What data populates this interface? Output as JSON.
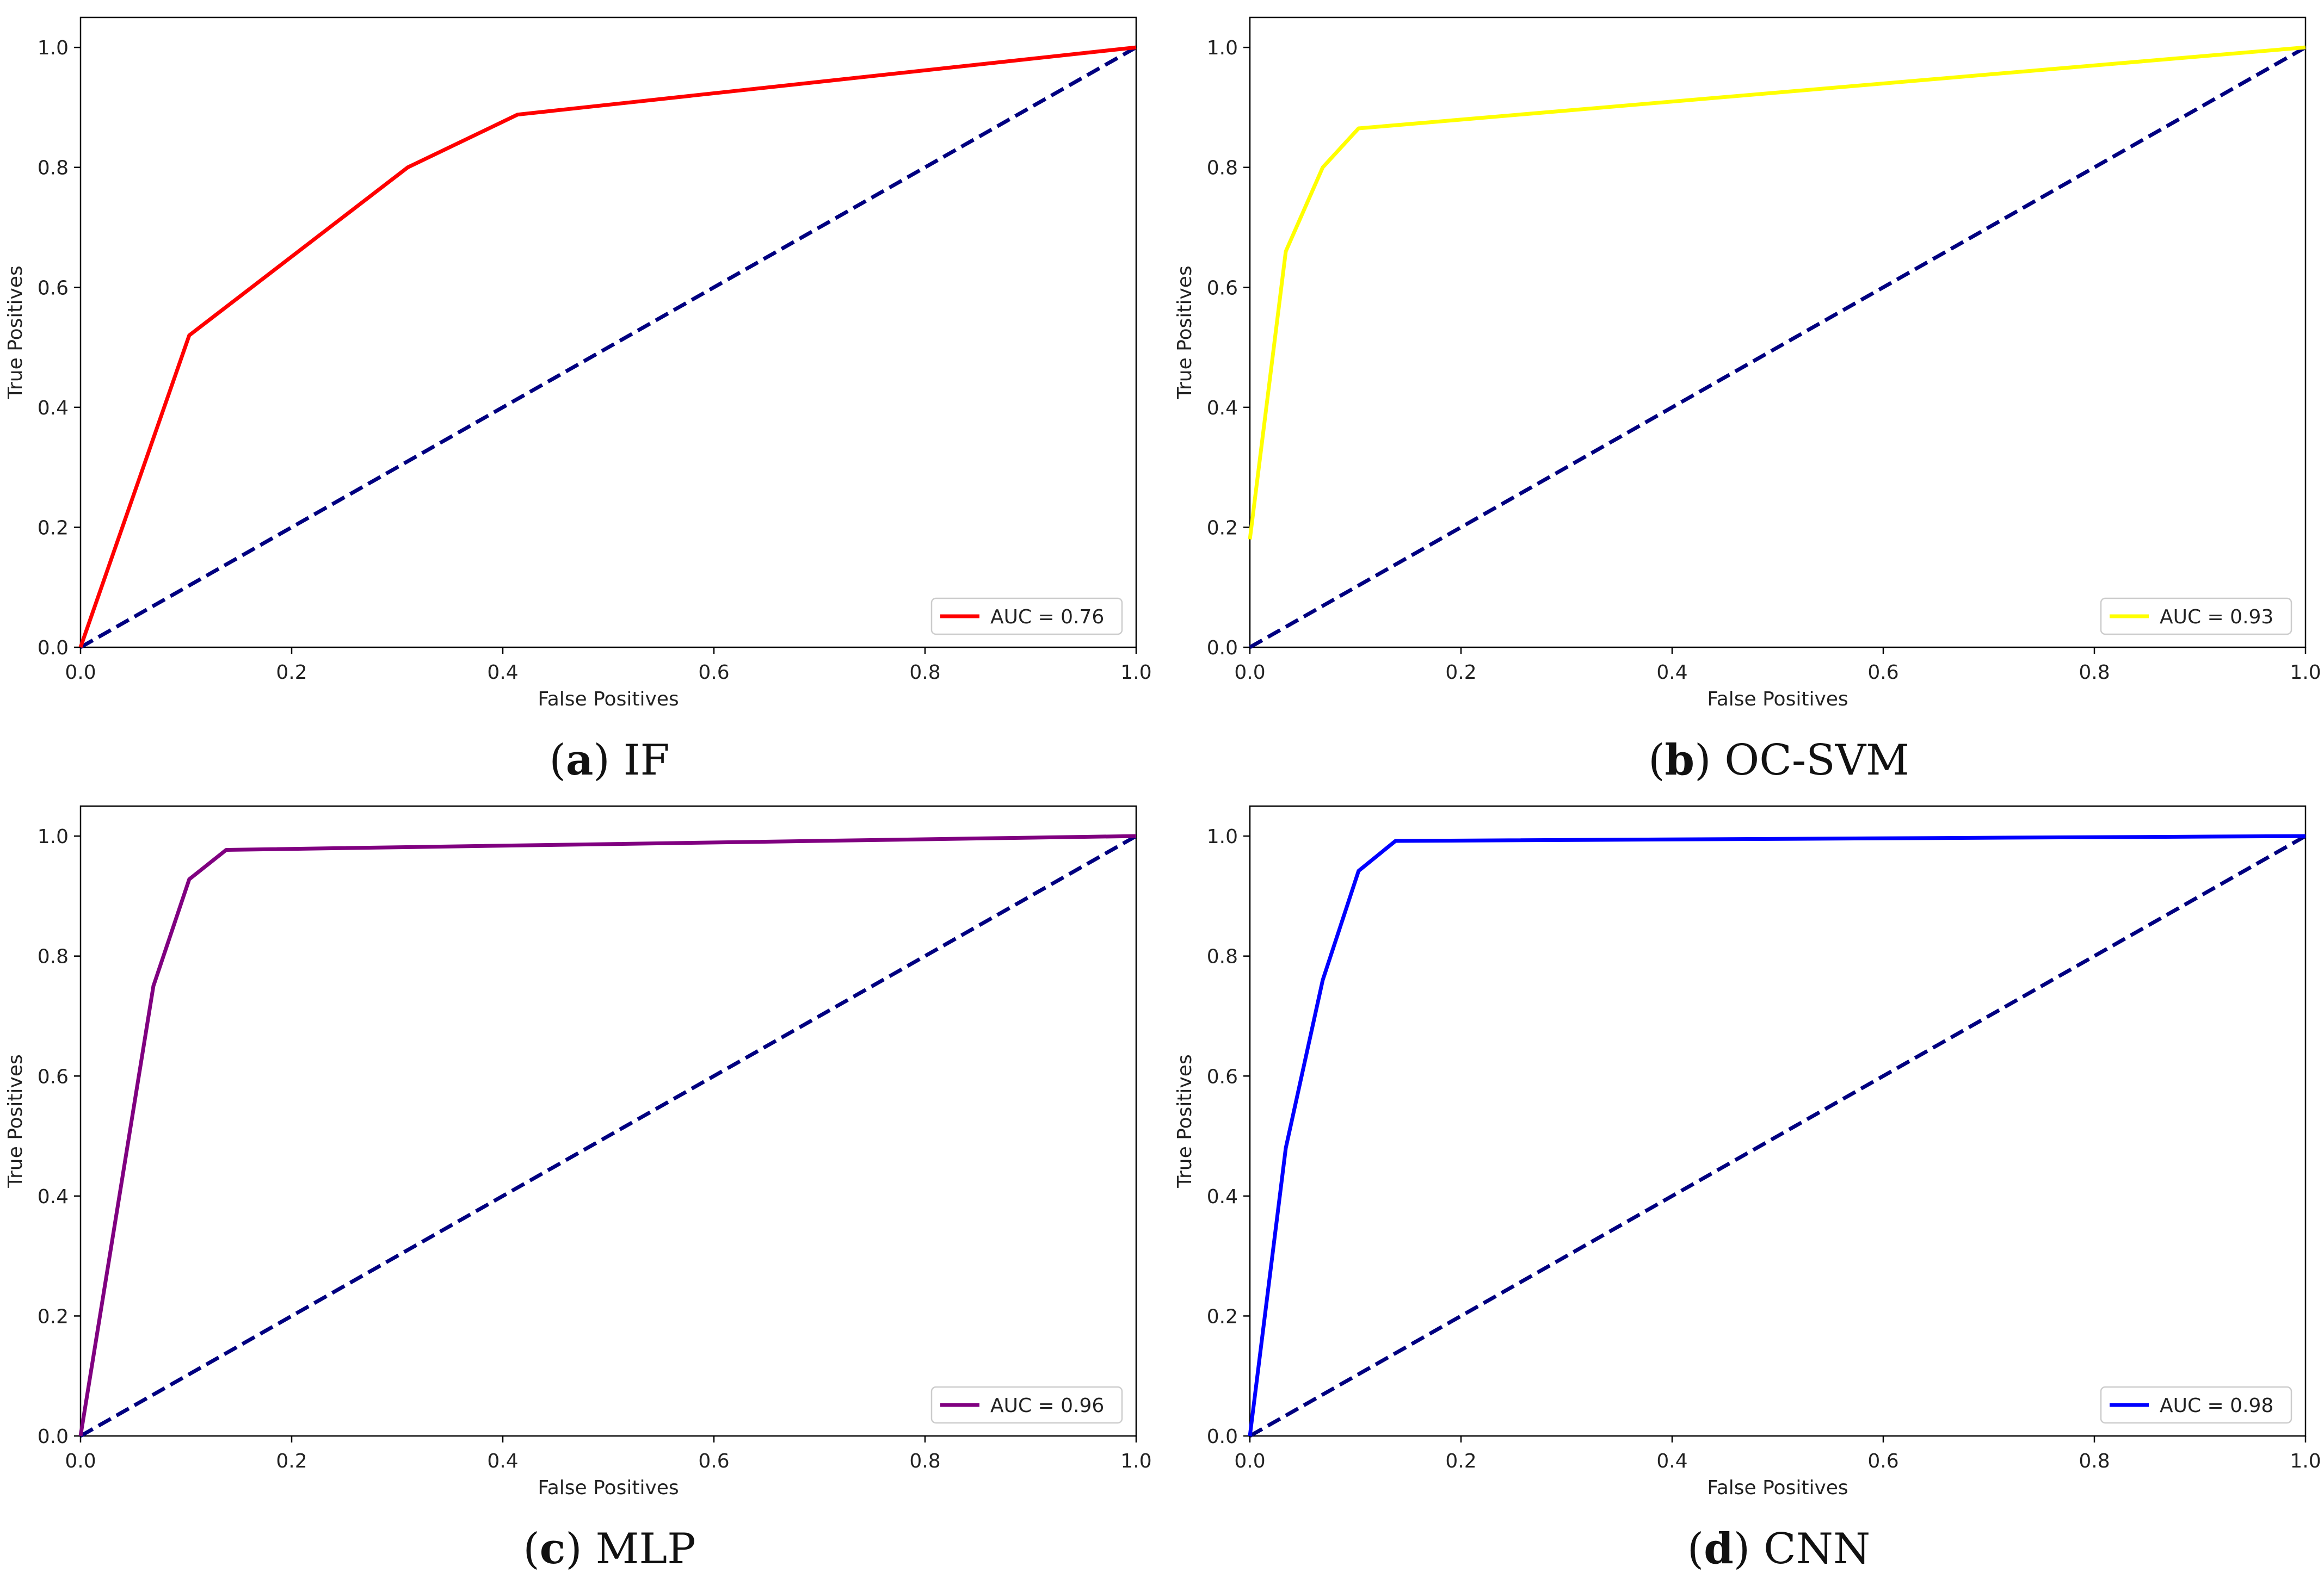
{
  "chart_data": [
    {
      "type": "line",
      "caption": {
        "letter": "a",
        "name": "IF"
      },
      "xlabel": "False Positives",
      "ylabel": "True Positives",
      "xlim": [
        0.0,
        1.0
      ],
      "ylim": [
        0.0,
        1.05
      ],
      "xticks": [
        "0.0",
        "0.2",
        "0.4",
        "0.6",
        "0.8",
        "1.0"
      ],
      "yticks": [
        "0.0",
        "0.2",
        "0.4",
        "0.6",
        "0.8",
        "1.0"
      ],
      "legend_position": "bottom-right",
      "series": [
        {
          "name": "AUC = 0.76",
          "color": "#ff0000",
          "style": "solid",
          "x": [
            0.0,
            0.103,
            0.31,
            0.414,
            1.0
          ],
          "y": [
            0.0,
            0.52,
            0.8,
            0.888,
            1.0
          ]
        },
        {
          "color": "#000080",
          "style": "dashed",
          "x": [
            0.0,
            1.0
          ],
          "y": [
            0.0,
            1.0
          ]
        }
      ]
    },
    {
      "type": "line",
      "caption": {
        "letter": "b",
        "name": "OC-SVM"
      },
      "xlabel": "False Positives",
      "ylabel": "True Positives",
      "xlim": [
        0.0,
        1.0
      ],
      "ylim": [
        0.0,
        1.05
      ],
      "xticks": [
        "0.0",
        "0.2",
        "0.4",
        "0.6",
        "0.8",
        "1.0"
      ],
      "yticks": [
        "0.0",
        "0.2",
        "0.4",
        "0.6",
        "0.8",
        "1.0"
      ],
      "legend_position": "bottom-right",
      "series": [
        {
          "name": "AUC = 0.93",
          "color": "#ffff00",
          "style": "solid",
          "x": [
            0.0,
            0.034,
            0.069,
            0.103,
            1.0
          ],
          "y": [
            0.18,
            0.66,
            0.8,
            0.865,
            1.0
          ]
        },
        {
          "color": "#000080",
          "style": "dashed",
          "x": [
            0.0,
            1.0
          ],
          "y": [
            0.0,
            1.0
          ]
        }
      ]
    },
    {
      "type": "line",
      "caption": {
        "letter": "c",
        "name": "MLP"
      },
      "xlabel": "False Positives",
      "ylabel": "True Positives",
      "xlim": [
        0.0,
        1.0
      ],
      "ylim": [
        0.0,
        1.05
      ],
      "xticks": [
        "0.0",
        "0.2",
        "0.4",
        "0.6",
        "0.8",
        "1.0"
      ],
      "yticks": [
        "0.0",
        "0.2",
        "0.4",
        "0.6",
        "0.8",
        "1.0"
      ],
      "legend_position": "bottom-right",
      "series": [
        {
          "name": "AUC = 0.96",
          "color": "#800080",
          "style": "solid",
          "x": [
            0.0,
            0.069,
            0.103,
            0.138,
            1.0
          ],
          "y": [
            0.0,
            0.75,
            0.928,
            0.977,
            1.0
          ]
        },
        {
          "color": "#000080",
          "style": "dashed",
          "x": [
            0.0,
            1.0
          ],
          "y": [
            0.0,
            1.0
          ]
        }
      ]
    },
    {
      "type": "line",
      "caption": {
        "letter": "d",
        "name": "CNN"
      },
      "xlabel": "False Positives",
      "ylabel": "True Positives",
      "xlim": [
        0.0,
        1.0
      ],
      "ylim": [
        0.0,
        1.05
      ],
      "xticks": [
        "0.0",
        "0.2",
        "0.4",
        "0.6",
        "0.8",
        "1.0"
      ],
      "yticks": [
        "0.0",
        "0.2",
        "0.4",
        "0.6",
        "0.8",
        "1.0"
      ],
      "legend_position": "bottom-right",
      "series": [
        {
          "name": "AUC = 0.98",
          "color": "#0000ff",
          "style": "solid",
          "x": [
            0.0,
            0.034,
            0.069,
            0.103,
            0.138,
            1.0
          ],
          "y": [
            0.0,
            0.48,
            0.76,
            0.942,
            0.992,
            1.0
          ]
        },
        {
          "color": "#000080",
          "style": "dashed",
          "x": [
            0.0,
            1.0
          ],
          "y": [
            0.0,
            1.0
          ]
        }
      ]
    }
  ]
}
